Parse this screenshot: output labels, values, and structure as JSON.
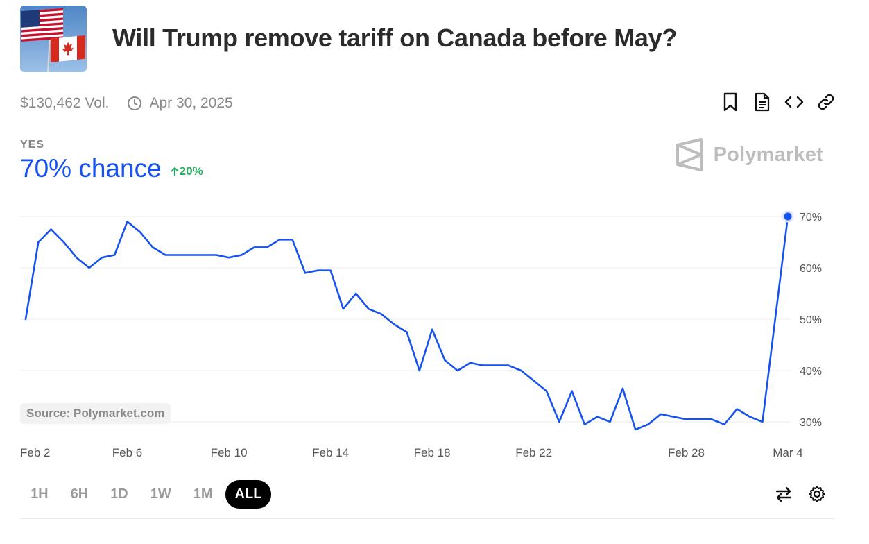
{
  "market": {
    "title": "Will Trump remove tariff on Canada before May?",
    "volume": "$130,462 Vol.",
    "end_date": "Apr 30, 2025"
  },
  "outcome": {
    "label": "YES",
    "chance": "70% chance",
    "delta": "20%"
  },
  "brand": {
    "name": "Polymarket"
  },
  "source_label": "Source: Polymarket.com",
  "ranges": [
    "1H",
    "6H",
    "1D",
    "1W",
    "1M",
    "ALL"
  ],
  "active_range": "ALL",
  "icons": {
    "bookmark": "bookmark-icon",
    "document": "document-icon",
    "embed": "embed-code-icon",
    "link": "link-icon",
    "clock": "clock-icon",
    "swap": "swap-arrows-icon",
    "settings": "gear-icon"
  },
  "colors": {
    "line": "#1652f0",
    "positive": "#27ae60",
    "grid": "#eeeeee"
  },
  "chart_data": {
    "type": "line",
    "title": "",
    "xlabel": "",
    "ylabel": "",
    "ylim": [
      30,
      70
    ],
    "x_domain_days": [
      0,
      30
    ],
    "x_ticks": [
      {
        "label": "Feb 2",
        "day": 0
      },
      {
        "label": "Feb 6",
        "day": 4
      },
      {
        "label": "Feb 10",
        "day": 8
      },
      {
        "label": "Feb 14",
        "day": 12
      },
      {
        "label": "Feb 18",
        "day": 16
      },
      {
        "label": "Feb 22",
        "day": 20
      },
      {
        "label": "Feb 28",
        "day": 26
      },
      {
        "label": "Mar 4",
        "day": 30
      }
    ],
    "y_ticks": [
      {
        "label": "30%",
        "value": 30
      },
      {
        "label": "40%",
        "value": 40
      },
      {
        "label": "50%",
        "value": 50
      },
      {
        "label": "60%",
        "value": 60
      },
      {
        "label": "70%",
        "value": 70
      }
    ],
    "series": [
      {
        "name": "Yes",
        "x_days": [
          0,
          0.5,
          1,
          1.5,
          2,
          2.5,
          3,
          3.5,
          4,
          4.5,
          5,
          5.5,
          6,
          6.5,
          7,
          7.5,
          8,
          8.5,
          9,
          9.5,
          10,
          10.5,
          11,
          11.5,
          12,
          12.5,
          13,
          13.5,
          14,
          14.5,
          15,
          15.5,
          16,
          16.5,
          17,
          17.5,
          18,
          18.5,
          19,
          19.5,
          20,
          20.5,
          21,
          21.5,
          22,
          22.5,
          23,
          23.5,
          24,
          24.5,
          25,
          25.5,
          26,
          26.5,
          27,
          27.5,
          28,
          28.5,
          29,
          29.5,
          30
        ],
        "values": [
          50,
          65,
          67.5,
          65,
          62,
          60,
          62,
          62.5,
          69,
          67,
          64,
          62.5,
          62.5,
          62.5,
          62.5,
          62.5,
          62,
          62.5,
          64,
          64,
          65.5,
          65.5,
          59,
          59.5,
          59.5,
          52,
          55,
          52,
          51,
          49,
          47.5,
          40,
          48,
          42,
          40,
          41.5,
          41,
          41,
          41,
          40,
          38,
          36,
          30,
          36,
          29.5,
          31,
          30,
          36.5,
          28.5,
          29.5,
          31.5,
          31,
          30.5,
          30.5,
          30.5,
          29.5,
          32.5,
          31,
          30,
          50,
          70
        ]
      }
    ]
  }
}
